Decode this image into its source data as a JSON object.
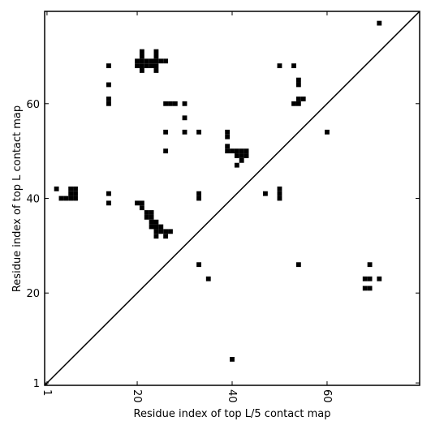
{
  "chart_data": {
    "type": "scatter",
    "xlabel": "Residue index of top L/5 contact map",
    "ylabel": "Residue index of top L contact map",
    "xlim": [
      0.5,
      79.5
    ],
    "ylim": [
      0.5,
      79.5
    ],
    "xticks": [
      1,
      20,
      40,
      60
    ],
    "yticks": [
      1,
      20,
      40,
      60
    ],
    "diagonal": true,
    "x": [
      3,
      4,
      5,
      6,
      7,
      6,
      7,
      6,
      7,
      14,
      14,
      14,
      14,
      14,
      14,
      21,
      21,
      24,
      24,
      20,
      21,
      22,
      23,
      24,
      25,
      20,
      21,
      22,
      23,
      24,
      21,
      24,
      26,
      26,
      27,
      28,
      30,
      30,
      26,
      30,
      33,
      26,
      39,
      39,
      39,
      39,
      40,
      41,
      42,
      43,
      41,
      43,
      42,
      42,
      41,
      50,
      53,
      54,
      54,
      53,
      54,
      54,
      55,
      60,
      33,
      33,
      20,
      21,
      21,
      22,
      23,
      22,
      23,
      23,
      24,
      23,
      24,
      25,
      24,
      25,
      26,
      27,
      24,
      26,
      47,
      50,
      50,
      50,
      33,
      35,
      54,
      69,
      68,
      69,
      71,
      68,
      69,
      40,
      71
    ],
    "series": [
      {
        "color": "#000000",
        "values": [
          42,
          40,
          40,
          40,
          40,
          41,
          41,
          42,
          42,
          68,
          64,
          61,
          60,
          41,
          39,
          71,
          70,
          71,
          70,
          69,
          69,
          69,
          69,
          69,
          69,
          68,
          68,
          68,
          68,
          68,
          67,
          67,
          69,
          60,
          60,
          60,
          60,
          57,
          54,
          54,
          54,
          50,
          54,
          53,
          51,
          50,
          50,
          50,
          50,
          50,
          49,
          49,
          49,
          48,
          47,
          68,
          68,
          65,
          64,
          60,
          60,
          61,
          61,
          54,
          41,
          40,
          39,
          39,
          38,
          37,
          37,
          36,
          36,
          35,
          35,
          34,
          34,
          34,
          33,
          33,
          33,
          33,
          32,
          32,
          41,
          42,
          41,
          40,
          26,
          23,
          26,
          26,
          23,
          23,
          23,
          21,
          21,
          6,
          77
        ]
      }
    ]
  }
}
